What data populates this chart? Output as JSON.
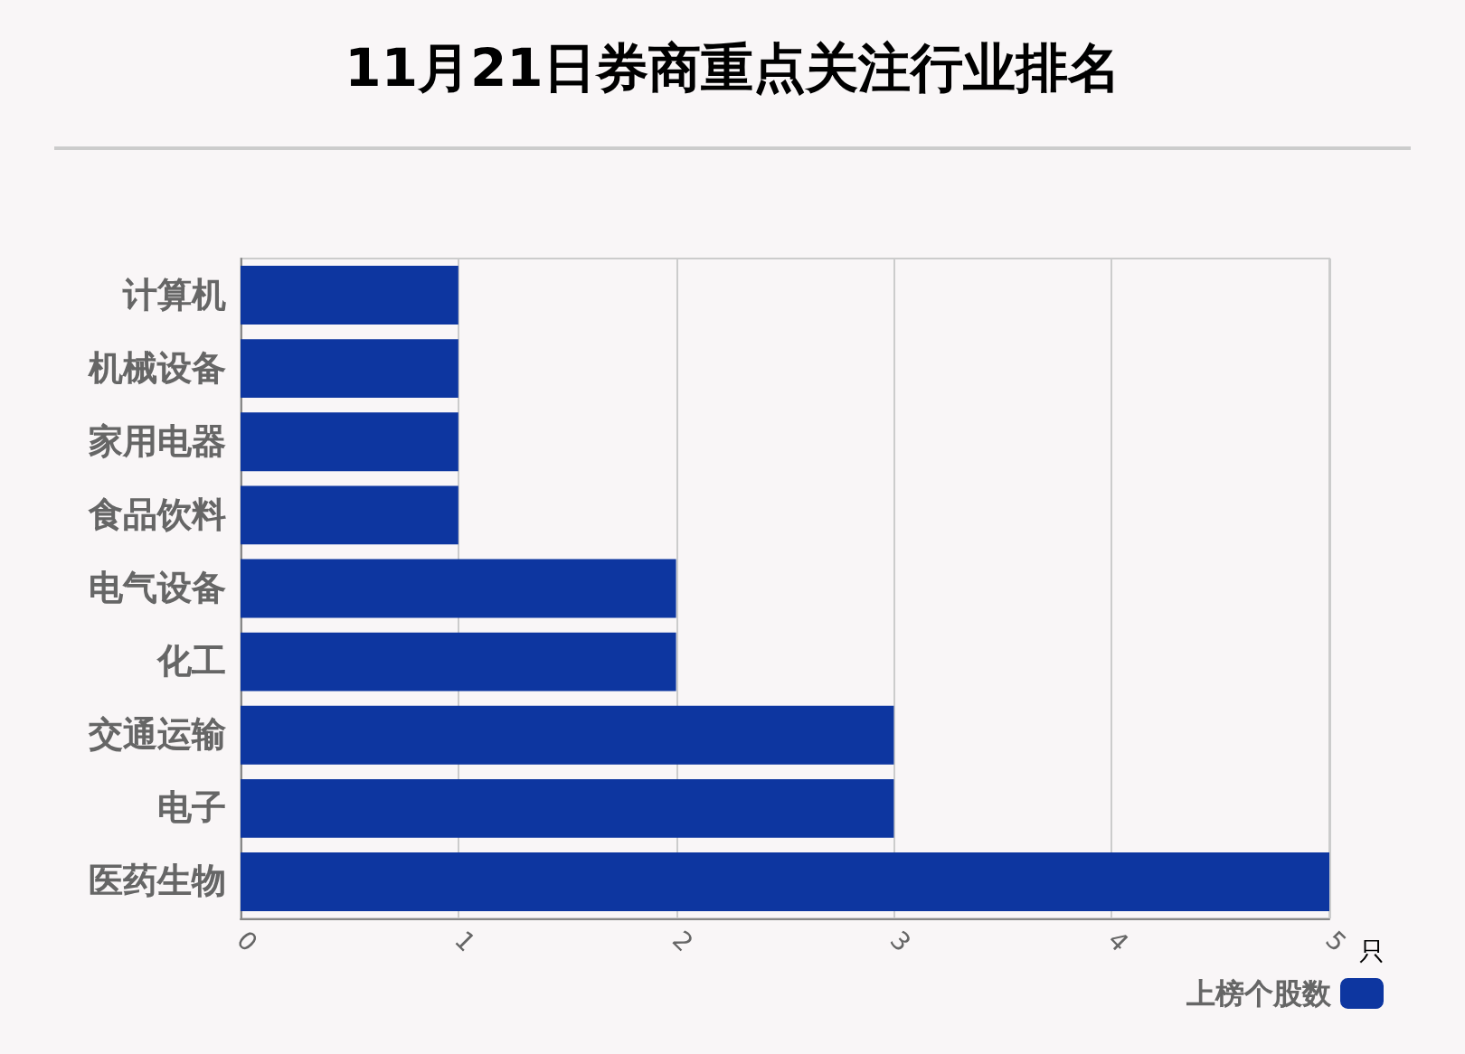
{
  "chart_data": {
    "type": "bar",
    "orientation": "horizontal",
    "title": "11月21日券商重点关注行业排名",
    "xlabel": "只",
    "categories": [
      "计算机",
      "机械设备",
      "家用电器",
      "食品饮料",
      "电气设备",
      "化工",
      "交通运输",
      "电子",
      "医药生物"
    ],
    "series": [
      {
        "name": "上榜个股数",
        "color": "#0d36a0",
        "values": [
          1,
          1,
          1,
          1,
          2,
          2,
          3,
          3,
          5
        ]
      }
    ],
    "xlim": [
      0,
      5
    ],
    "xticks": [
      0,
      1,
      2,
      3,
      4,
      5
    ],
    "grid": "x",
    "legend": "bottom right"
  }
}
